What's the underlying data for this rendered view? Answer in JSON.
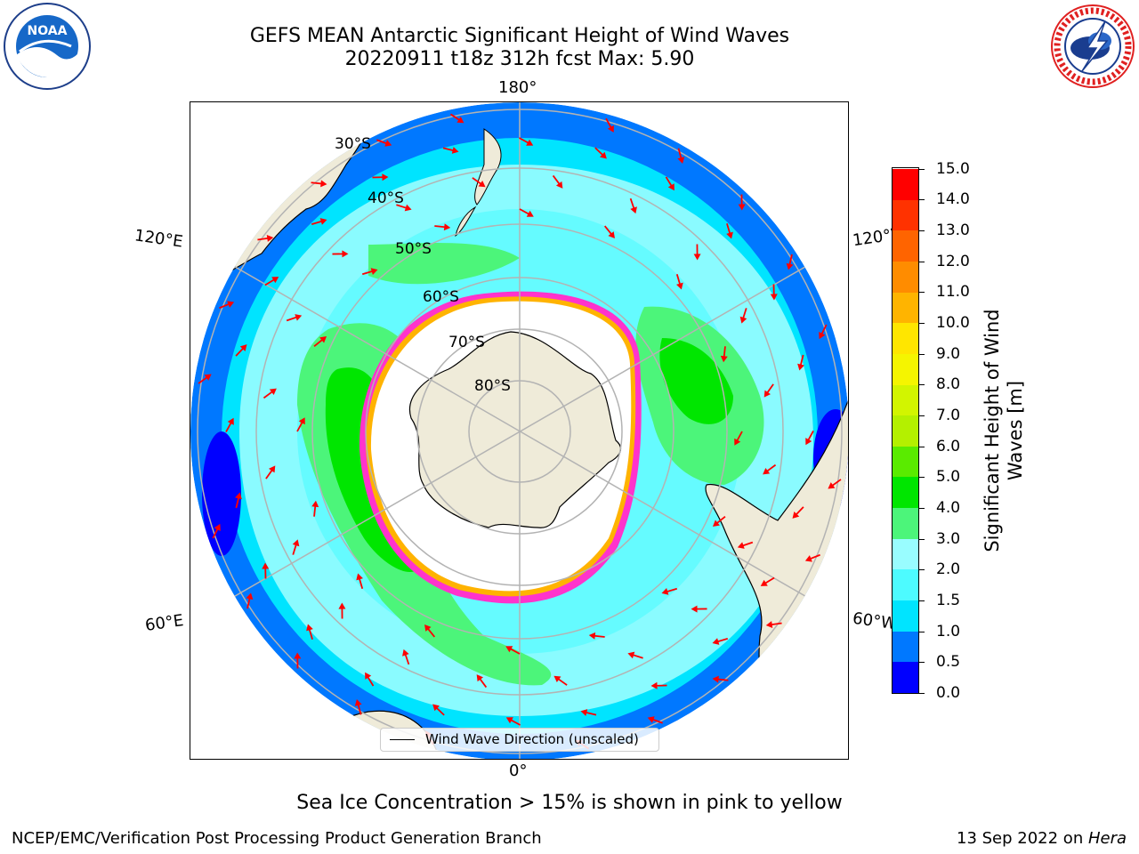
{
  "header": {
    "title": "GEFS MEAN Antarctic Significant Height of Wind Waves",
    "subtitle": "20220911 t18z 312h fcst   Max: 5.90"
  },
  "logos": {
    "left": "NOAA",
    "left_ring": "NATIONAL OCEANIC AND ATMOSPHERIC ADMINISTRATION  U.S. DEPARTMENT OF COMMERCE",
    "right_ring": "NATIONAL WEATHER SERVICE"
  },
  "map": {
    "projection": "south-polar-stereographic",
    "longitude_labels": {
      "top": "180°",
      "bottom": "0°",
      "upper_left": "120°E",
      "upper_right": "120°W",
      "lower_left": "60°E",
      "lower_right": "60°W"
    },
    "latitude_labels": [
      "30°S",
      "40°S",
      "50°S",
      "60°S",
      "70°S",
      "80°S"
    ],
    "colors": {
      "land": "#efebd9",
      "open_ocean_outer": "#0078ff",
      "ocean_mid": "#00e4ff",
      "ocean_calm": "#99fdff",
      "high_waves": "#4cf57a",
      "peak_waves": "#00e600",
      "extreme_low": "#0000ff",
      "sea_ice_edge": "#ff33cc",
      "sea_ice_inner": "#ffb300",
      "arrow": "#ff0000",
      "grid": "#b3b3b3"
    }
  },
  "legend": {
    "label": "Wind Wave Direction (unscaled)"
  },
  "colorbar": {
    "label": "Significant Height of Wind Waves [m]",
    "ticks": [
      "0.0",
      "0.5",
      "1.0",
      "1.5",
      "2.0",
      "3.0",
      "4.0",
      "5.0",
      "6.0",
      "7.0",
      "8.0",
      "9.0",
      "10.0",
      "11.0",
      "12.0",
      "13.0",
      "14.0",
      "15.0"
    ],
    "colors": [
      "#0000ff",
      "#0078ff",
      "#00e4ff",
      "#4dfbff",
      "#99fdff",
      "#4cf57a",
      "#00e600",
      "#5aeb00",
      "#b4f000",
      "#d2f500",
      "#f5f500",
      "#ffe600",
      "#ffb400",
      "#ff8c00",
      "#ff6400",
      "#ff3200",
      "#ff0000"
    ]
  },
  "footer": {
    "note": "Sea Ice Concentration > 15% is shown in pink to yellow",
    "left": "NCEP/EMC/Verification Post Processing Product Generation Branch",
    "right_prefix": "13 Sep 2022 on ",
    "right_host": "Hera"
  }
}
